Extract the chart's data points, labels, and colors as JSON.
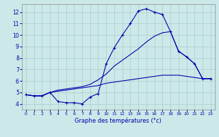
{
  "title": "Graphe des températures (°c)",
  "bg_color": "#cce8e8",
  "grid_color": "#aacccc",
  "line_color": "#0000aa",
  "xlim": [
    -0.5,
    23.5
  ],
  "ylim": [
    3.5,
    12.7
  ],
  "xticks": [
    0,
    1,
    2,
    3,
    4,
    5,
    6,
    7,
    8,
    9,
    10,
    11,
    12,
    13,
    14,
    15,
    16,
    17,
    18,
    19,
    20,
    21,
    22,
    23
  ],
  "yticks": [
    4,
    5,
    6,
    7,
    8,
    9,
    10,
    11,
    12
  ],
  "series": {
    "temp": [
      4.8,
      4.7,
      4.7,
      5.0,
      4.2,
      4.1,
      4.1,
      4.0,
      4.6,
      4.9,
      7.5,
      8.9,
      10.0,
      11.0,
      12.1,
      12.3,
      12.0,
      11.8,
      10.3,
      8.6,
      8.1,
      7.5,
      6.2,
      6.2
    ],
    "max_line": [
      4.8,
      4.7,
      4.7,
      5.0,
      5.2,
      5.3,
      5.4,
      5.5,
      5.7,
      6.1,
      6.6,
      7.3,
      7.8,
      8.3,
      8.8,
      9.4,
      9.9,
      10.2,
      10.3,
      8.6,
      8.1,
      7.5,
      6.2,
      6.2
    ],
    "min_line": [
      4.8,
      4.7,
      4.7,
      5.0,
      5.1,
      5.2,
      5.3,
      5.4,
      5.5,
      5.6,
      5.8,
      5.9,
      6.0,
      6.1,
      6.2,
      6.3,
      6.4,
      6.5,
      6.5,
      6.5,
      6.4,
      6.3,
      6.2,
      6.2
    ]
  }
}
